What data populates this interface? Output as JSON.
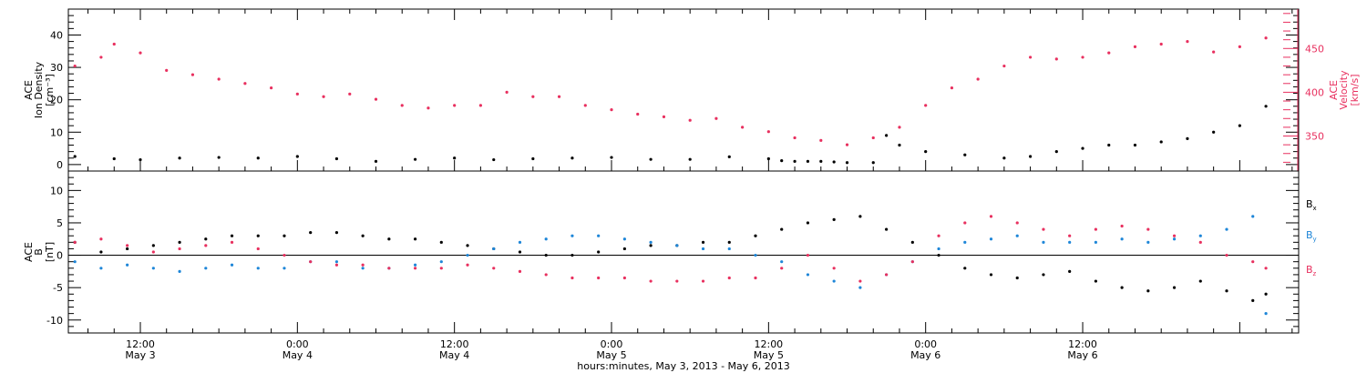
{
  "colors": {
    "axis": "#000000",
    "density": "#000000",
    "velocity": "#e8305f",
    "bx": "#000000",
    "by": "#1e86d8",
    "bz": "#e8305f"
  },
  "chart_data": [
    {
      "type": "scatter",
      "panel": "top",
      "left_ylabel": [
        "ACE",
        "Ion Density",
        "[cm⁻³]"
      ],
      "right_ylabel": [
        "ACE",
        "Velocity",
        "[km/s]"
      ],
      "left_ylim": [
        -2,
        48
      ],
      "left_yticks": [
        0,
        10,
        20,
        30,
        40
      ],
      "right_ylim": [
        310,
        495
      ],
      "right_yticks": [
        350,
        400,
        450
      ],
      "xlim_hours": [
        6.5,
        100.5
      ],
      "x_hours_note_origin": "May 3 00:00",
      "series": [
        {
          "role": "ion_density",
          "axis": "left",
          "x_hours": [
            7,
            10,
            12,
            15,
            18,
            21,
            24,
            27,
            30,
            33,
            36,
            39,
            42,
            45,
            48,
            51,
            54,
            57,
            60,
            61,
            62,
            63,
            64,
            65,
            66,
            68,
            69,
            70,
            72,
            75,
            78,
            80,
            82,
            84,
            86,
            88,
            90,
            92,
            94,
            96,
            98
          ],
          "values": [
            2.5,
            1.8,
            1.5,
            2.0,
            2.2,
            2.0,
            2.5,
            1.8,
            1.0,
            1.6,
            2.0,
            1.5,
            1.8,
            2.0,
            2.2,
            1.6,
            1.6,
            2.4,
            1.8,
            1.2,
            1.0,
            1.0,
            1.0,
            0.8,
            0.6,
            0.6,
            9,
            6,
            4,
            3,
            2,
            2.5,
            4,
            5,
            6,
            6,
            7,
            8,
            10,
            12,
            18
          ]
        },
        {
          "role": "velocity",
          "axis": "right",
          "x_hours": [
            7,
            9,
            10,
            12,
            14,
            16,
            18,
            20,
            22,
            24,
            26,
            28,
            30,
            32,
            34,
            36,
            38,
            40,
            42,
            44,
            46,
            48,
            50,
            52,
            54,
            56,
            58,
            60,
            62,
            64,
            66,
            68,
            70,
            72,
            74,
            76,
            78,
            80,
            82,
            84,
            86,
            88,
            90,
            92,
            94,
            96,
            98
          ],
          "values": [
            430,
            440,
            455,
            445,
            425,
            420,
            415,
            410,
            405,
            398,
            395,
            398,
            392,
            385,
            382,
            385,
            385,
            400,
            395,
            395,
            385,
            380,
            375,
            372,
            368,
            370,
            360,
            355,
            348,
            345,
            340,
            348,
            360,
            385,
            405,
            415,
            430,
            440,
            438,
            440,
            445,
            452,
            455,
            458,
            446,
            452,
            462
          ]
        }
      ]
    },
    {
      "type": "scatter",
      "panel": "bottom",
      "left_ylabel": [
        "ACE",
        "B",
        "[nT]"
      ],
      "ylim": [
        -12,
        13
      ],
      "yticks": [
        -10,
        -5,
        0,
        5,
        10
      ],
      "zero_line": true,
      "xlim_hours": [
        6.5,
        100.5
      ],
      "series": [
        {
          "name": "Bx",
          "x_hours": [
            7,
            9,
            11,
            13,
            15,
            17,
            19,
            21,
            23,
            25,
            27,
            29,
            31,
            33,
            35,
            37,
            39,
            41,
            43,
            45,
            47,
            49,
            51,
            53,
            55,
            57,
            59,
            61,
            63,
            65,
            67,
            69,
            71,
            73,
            75,
            77,
            79,
            81,
            83,
            85,
            87,
            89,
            91,
            93,
            95,
            97,
            98
          ],
          "values": [
            2,
            0.5,
            1,
            1.5,
            2,
            2.5,
            3,
            3,
            3,
            3.5,
            3.5,
            3,
            2.5,
            2.5,
            2,
            1.5,
            1,
            0.5,
            0,
            0,
            0.5,
            1,
            1.5,
            1.5,
            2,
            2,
            3,
            4,
            5,
            5.5,
            6,
            4,
            2,
            0,
            -2,
            -3,
            -3.5,
            -3,
            -2.5,
            -4,
            -5,
            -5.5,
            -5,
            -4,
            -5.5,
            -7,
            -6
          ]
        },
        {
          "name": "By",
          "x_hours": [
            7,
            9,
            11,
            13,
            15,
            17,
            19,
            21,
            23,
            25,
            27,
            29,
            31,
            33,
            35,
            37,
            39,
            41,
            43,
            45,
            47,
            49,
            51,
            53,
            55,
            57,
            59,
            61,
            63,
            65,
            67,
            69,
            71,
            73,
            75,
            77,
            79,
            81,
            83,
            85,
            87,
            89,
            91,
            93,
            95,
            97,
            98
          ],
          "values": [
            -1,
            -2,
            -1.5,
            -2,
            -2.5,
            -2,
            -1.5,
            -2,
            -2,
            -1,
            -1,
            -2,
            -2,
            -1.5,
            -1,
            0,
            1,
            2,
            2.5,
            3,
            3,
            2.5,
            2,
            1.5,
            1,
            1,
            0,
            -1,
            -3,
            -4,
            -5,
            -3,
            -1,
            1,
            2,
            2.5,
            3,
            2,
            2,
            2,
            2.5,
            2,
            2.5,
            3,
            4,
            6,
            -9
          ]
        },
        {
          "name": "Bz",
          "x_hours": [
            7,
            9,
            11,
            13,
            15,
            17,
            19,
            21,
            23,
            25,
            27,
            29,
            31,
            33,
            35,
            37,
            39,
            41,
            43,
            45,
            47,
            49,
            51,
            53,
            55,
            57,
            59,
            61,
            63,
            65,
            67,
            69,
            71,
            73,
            75,
            77,
            79,
            81,
            83,
            85,
            87,
            89,
            91,
            93,
            95,
            97,
            98
          ],
          "values": [
            2,
            2.5,
            1.5,
            0.5,
            1,
            1.5,
            2,
            1,
            0,
            -1,
            -1.5,
            -1.5,
            -2,
            -2,
            -2,
            -1.5,
            -2,
            -2.5,
            -3,
            -3.5,
            -3.5,
            -3.5,
            -4,
            -4,
            -4,
            -3.5,
            -3.5,
            -2,
            0,
            -2,
            -4,
            -3,
            -1,
            3,
            5,
            6,
            5,
            4,
            3,
            4,
            4.5,
            4,
            3,
            2,
            0,
            -1,
            -2
          ]
        }
      ]
    }
  ],
  "x_axis": {
    "ticks": [
      {
        "hours": 12,
        "time": "12:00",
        "date": "May 3"
      },
      {
        "hours": 24,
        "time": "0:00",
        "date": "May 4"
      },
      {
        "hours": 36,
        "time": "12:00",
        "date": "May 4"
      },
      {
        "hours": 48,
        "time": "0:00",
        "date": "May 5"
      },
      {
        "hours": 60,
        "time": "12:00",
        "date": "May 5"
      },
      {
        "hours": 72,
        "time": "0:00",
        "date": "May 6"
      },
      {
        "hours": 84,
        "time": "12:00",
        "date": "May 6"
      }
    ],
    "label": "hours:minutes, May  3, 2013 - May  6, 2013"
  },
  "legend": {
    "bx": {
      "base": "B",
      "sub": "x"
    },
    "by": {
      "base": "B",
      "sub": "y"
    },
    "bz": {
      "base": "B",
      "sub": "z"
    }
  }
}
